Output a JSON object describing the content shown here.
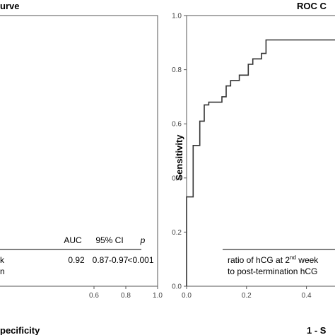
{
  "chart_data": [
    {
      "type": "line",
      "title": "urve",
      "xlabel": "pecificity",
      "ylabel": "",
      "xlim": [
        0.0,
        1.0
      ],
      "ylim": [
        0.0,
        1.0
      ],
      "grid": false,
      "x_ticks": [
        0.6,
        0.8,
        1.0
      ],
      "x_tick_labels": [
        "0.6",
        "0.8",
        "1.0"
      ],
      "table": {
        "headers": [
          "AUC",
          "95% CI",
          "p"
        ],
        "row_label_lines": [
          "k",
          "n"
        ],
        "values": [
          "0.92",
          "0.87-0.97",
          "<0.001"
        ]
      }
    },
    {
      "type": "line",
      "title": "ROC C",
      "xlabel": "1 - S",
      "ylabel": "Sensitivity",
      "xlim": [
        0.0,
        0.5
      ],
      "ylim": [
        0.0,
        1.0
      ],
      "grid": false,
      "x_ticks": [
        0.0,
        0.2,
        0.4
      ],
      "x_tick_labels": [
        "0.0",
        "0.2",
        "0.4"
      ],
      "y_ticks": [
        0.0,
        0.2,
        0.4,
        0.6,
        0.8,
        1.0
      ],
      "y_tick_labels": [
        "0.0",
        "0.2",
        "0.4",
        "0.6",
        "0.8",
        "1.0"
      ],
      "series": [
        {
          "x": [
            0.0,
            0.0,
            0.022,
            0.022,
            0.044,
            0.044,
            0.059,
            0.059,
            0.074,
            0.074,
            0.118,
            0.118,
            0.132,
            0.132,
            0.147,
            0.147,
            0.176,
            0.176,
            0.206,
            0.206,
            0.221,
            0.221,
            0.25,
            0.25,
            0.265,
            0.265,
            0.5
          ],
          "y": [
            0.0,
            0.33,
            0.33,
            0.52,
            0.52,
            0.61,
            0.61,
            0.67,
            0.67,
            0.68,
            0.68,
            0.7,
            0.7,
            0.74,
            0.74,
            0.76,
            0.76,
            0.78,
            0.78,
            0.82,
            0.82,
            0.84,
            0.84,
            0.86,
            0.86,
            0.91,
            0.91
          ]
        }
      ],
      "legend": {
        "line1_pre": "ratio of hCG at 2",
        "line1_sup": "nd",
        "line1_post": " week",
        "line2": "to post-termination hCG"
      }
    }
  ]
}
